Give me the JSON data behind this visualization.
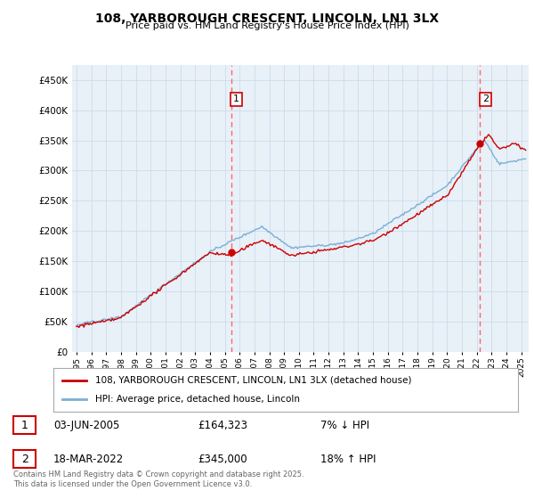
{
  "title": "108, YARBOROUGH CRESCENT, LINCOLN, LN1 3LX",
  "subtitle": "Price paid vs. HM Land Registry's House Price Index (HPI)",
  "ylabel_ticks": [
    "£0",
    "£50K",
    "£100K",
    "£150K",
    "£200K",
    "£250K",
    "£300K",
    "£350K",
    "£400K",
    "£450K"
  ],
  "ytick_values": [
    0,
    50000,
    100000,
    150000,
    200000,
    250000,
    300000,
    350000,
    400000,
    450000
  ],
  "ylim": [
    0,
    475000
  ],
  "xlim_start": 1994.7,
  "xlim_end": 2025.5,
  "vline1_x": 2005.42,
  "vline2_x": 2022.21,
  "marker1_x": 2005.42,
  "marker1_y": 164323,
  "marker2_x": 2022.21,
  "marker2_y": 345000,
  "marker_color": "#cc0000",
  "vline_color": "#ff6666",
  "hpi_line_color": "#7ab0d4",
  "price_line_color": "#cc0000",
  "chart_bg_color": "#e8f0f8",
  "legend_label_price": "108, YARBOROUGH CRESCENT, LINCOLN, LN1 3LX (detached house)",
  "legend_label_hpi": "HPI: Average price, detached house, Lincoln",
  "table_row1": [
    "1",
    "03-JUN-2005",
    "£164,323",
    "7% ↓ HPI"
  ],
  "table_row2": [
    "2",
    "18-MAR-2022",
    "£345,000",
    "18% ↑ HPI"
  ],
  "footer": "Contains HM Land Registry data © Crown copyright and database right 2025.\nThis data is licensed under the Open Government Licence v3.0.",
  "background_color": "#ffffff",
  "grid_color": "#c8d8e8"
}
